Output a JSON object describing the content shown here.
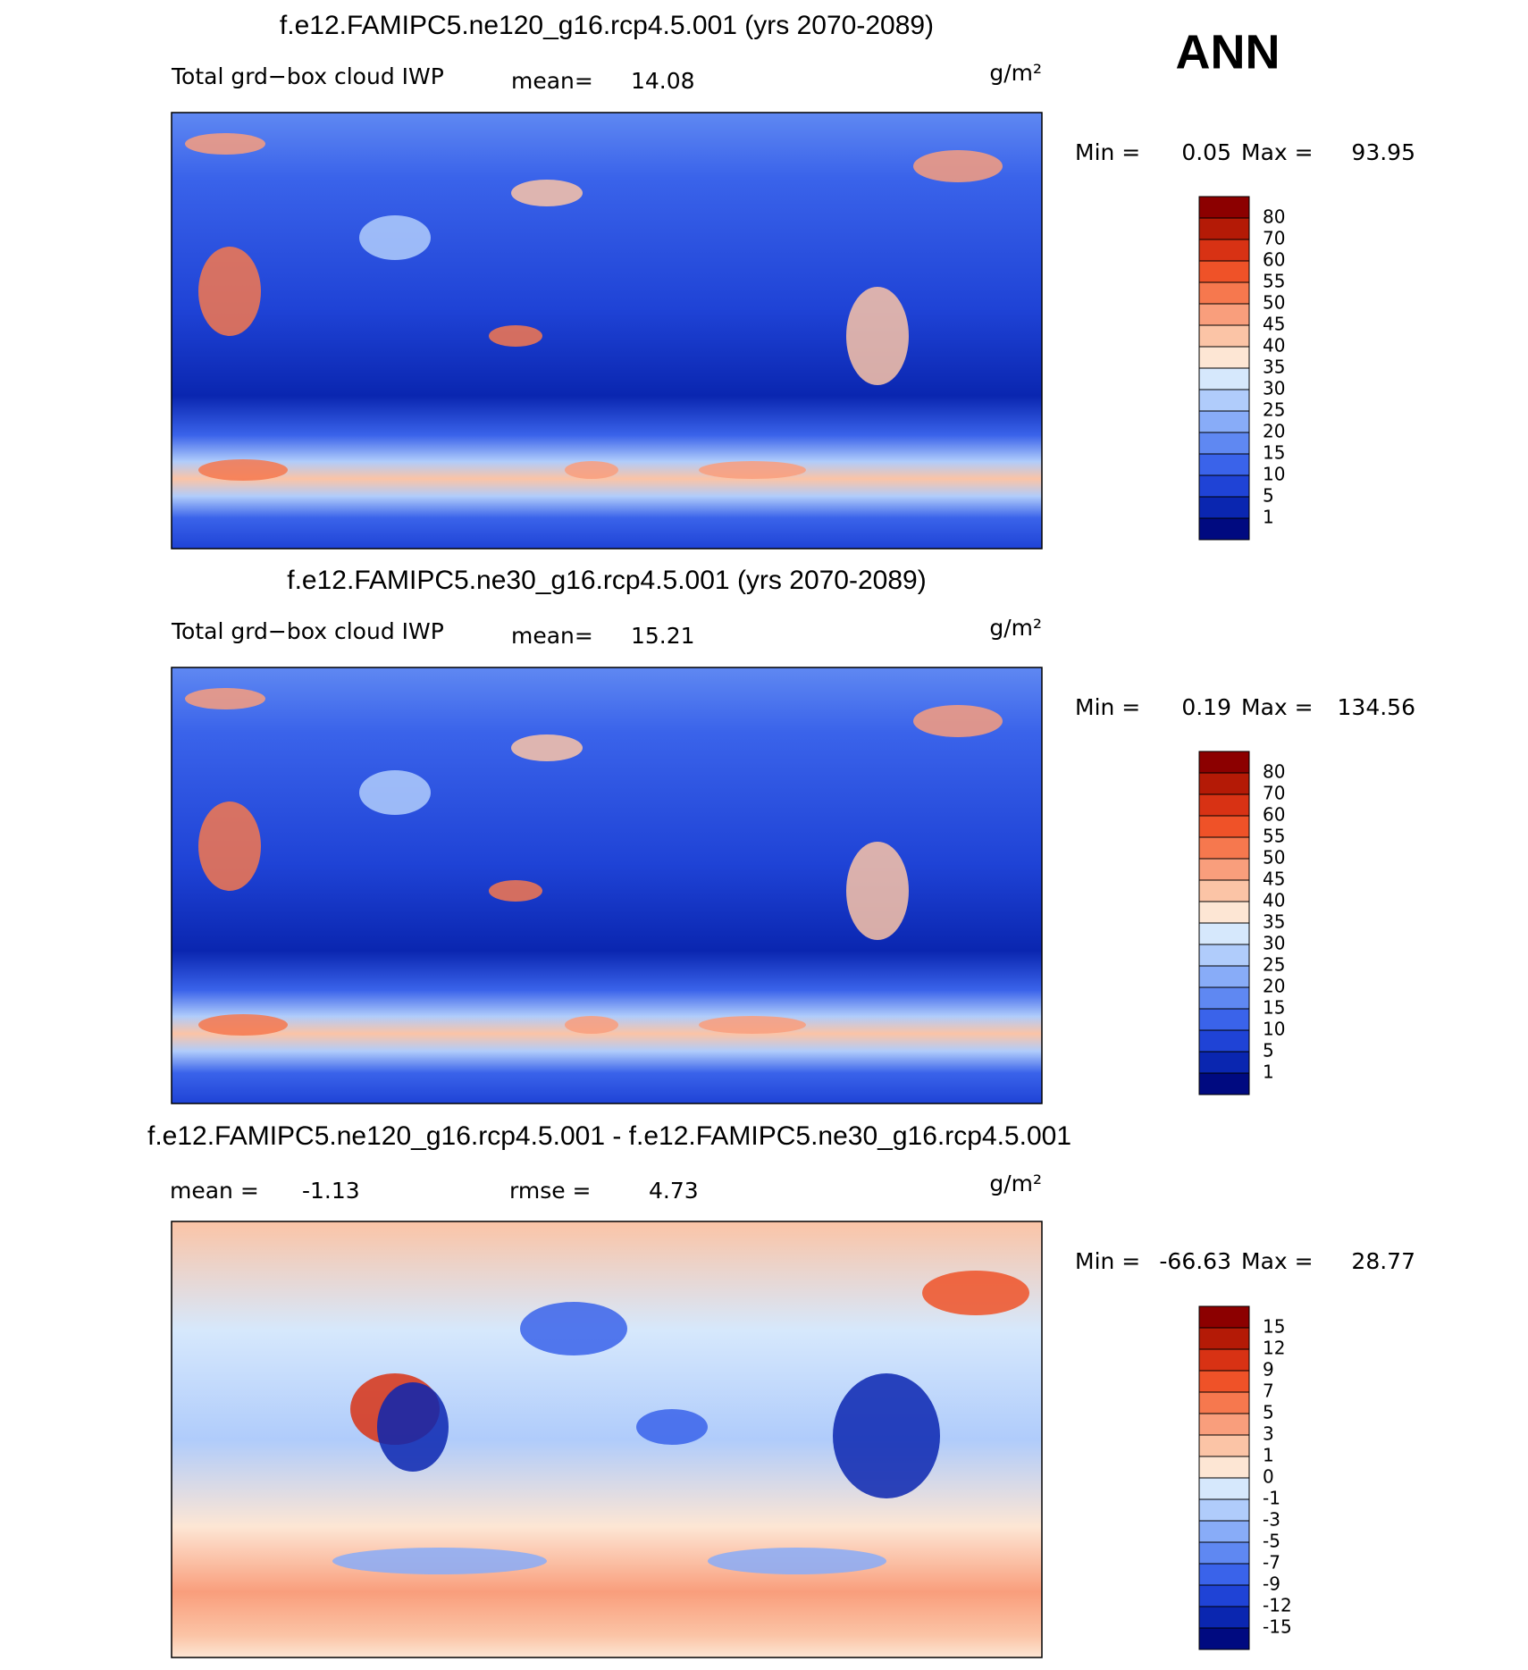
{
  "figure_label": "ANN",
  "panels": [
    {
      "title": "f.e12.FAMIPC5.ne120_g16.rcp4.5.001 (yrs 2070-2089)",
      "variable": "Total grd−box cloud IWP",
      "mean_label": "mean=",
      "mean": 14.08,
      "units": "g/m²",
      "min_label": "Min =",
      "min": 0.05,
      "max_label": "Max =",
      "max": 93.95,
      "levels": [
        80,
        70,
        60,
        55,
        50,
        45,
        40,
        35,
        30,
        25,
        20,
        15,
        10,
        5,
        1
      ],
      "colors": [
        "#8c0000",
        "#b41a06",
        "#d83214",
        "#ef5228",
        "#f6784e",
        "#f99e7c",
        "#fbc4a6",
        "#fde6d4",
        "#d6e8fc",
        "#b0ccfb",
        "#88acf8",
        "#5f88f2",
        "#3a63ea",
        "#1f43d6",
        "#0a26b0",
        "#000a80"
      ]
    },
    {
      "title": "f.e12.FAMIPC5.ne30_g16.rcp4.5.001 (yrs 2070-2089)",
      "variable": "Total grd−box cloud IWP",
      "mean_label": "mean=",
      "mean": 15.21,
      "units": "g/m²",
      "min_label": "Min =",
      "min": 0.19,
      "max_label": "Max =",
      "max": 134.56,
      "levels": [
        80,
        70,
        60,
        55,
        50,
        45,
        40,
        35,
        30,
        25,
        20,
        15,
        10,
        5,
        1
      ],
      "colors": [
        "#8c0000",
        "#b41a06",
        "#d83214",
        "#ef5228",
        "#f6784e",
        "#f99e7c",
        "#fbc4a6",
        "#fde6d4",
        "#d6e8fc",
        "#b0ccfb",
        "#88acf8",
        "#5f88f2",
        "#3a63ea",
        "#1f43d6",
        "#0a26b0",
        "#000a80"
      ]
    },
    {
      "title": "f.e12.FAMIPC5.ne120_g16.rcp4.5.001 - f.e12.FAMIPC5.ne30_g16.rcp4.5.001",
      "mean_label": "mean =",
      "mean": -1.13,
      "rmse_label": "rmse =",
      "rmse": 4.73,
      "units": "g/m²",
      "min_label": "Min =",
      "min": -66.63,
      "max_label": "Max =",
      "max": 28.77,
      "levels": [
        15,
        12,
        9,
        7,
        5,
        3,
        1,
        0,
        -1,
        -3,
        -5,
        -7,
        -9,
        -12,
        -15
      ],
      "colors": [
        "#8c0000",
        "#b41a06",
        "#d83214",
        "#ef5228",
        "#f6784e",
        "#f99e7c",
        "#fbc4a6",
        "#fde6d4",
        "#d6e8fc",
        "#b0ccfb",
        "#88acf8",
        "#5f88f2",
        "#3a63ea",
        "#1f43d6",
        "#0a26b0",
        "#000a80"
      ]
    }
  ]
}
